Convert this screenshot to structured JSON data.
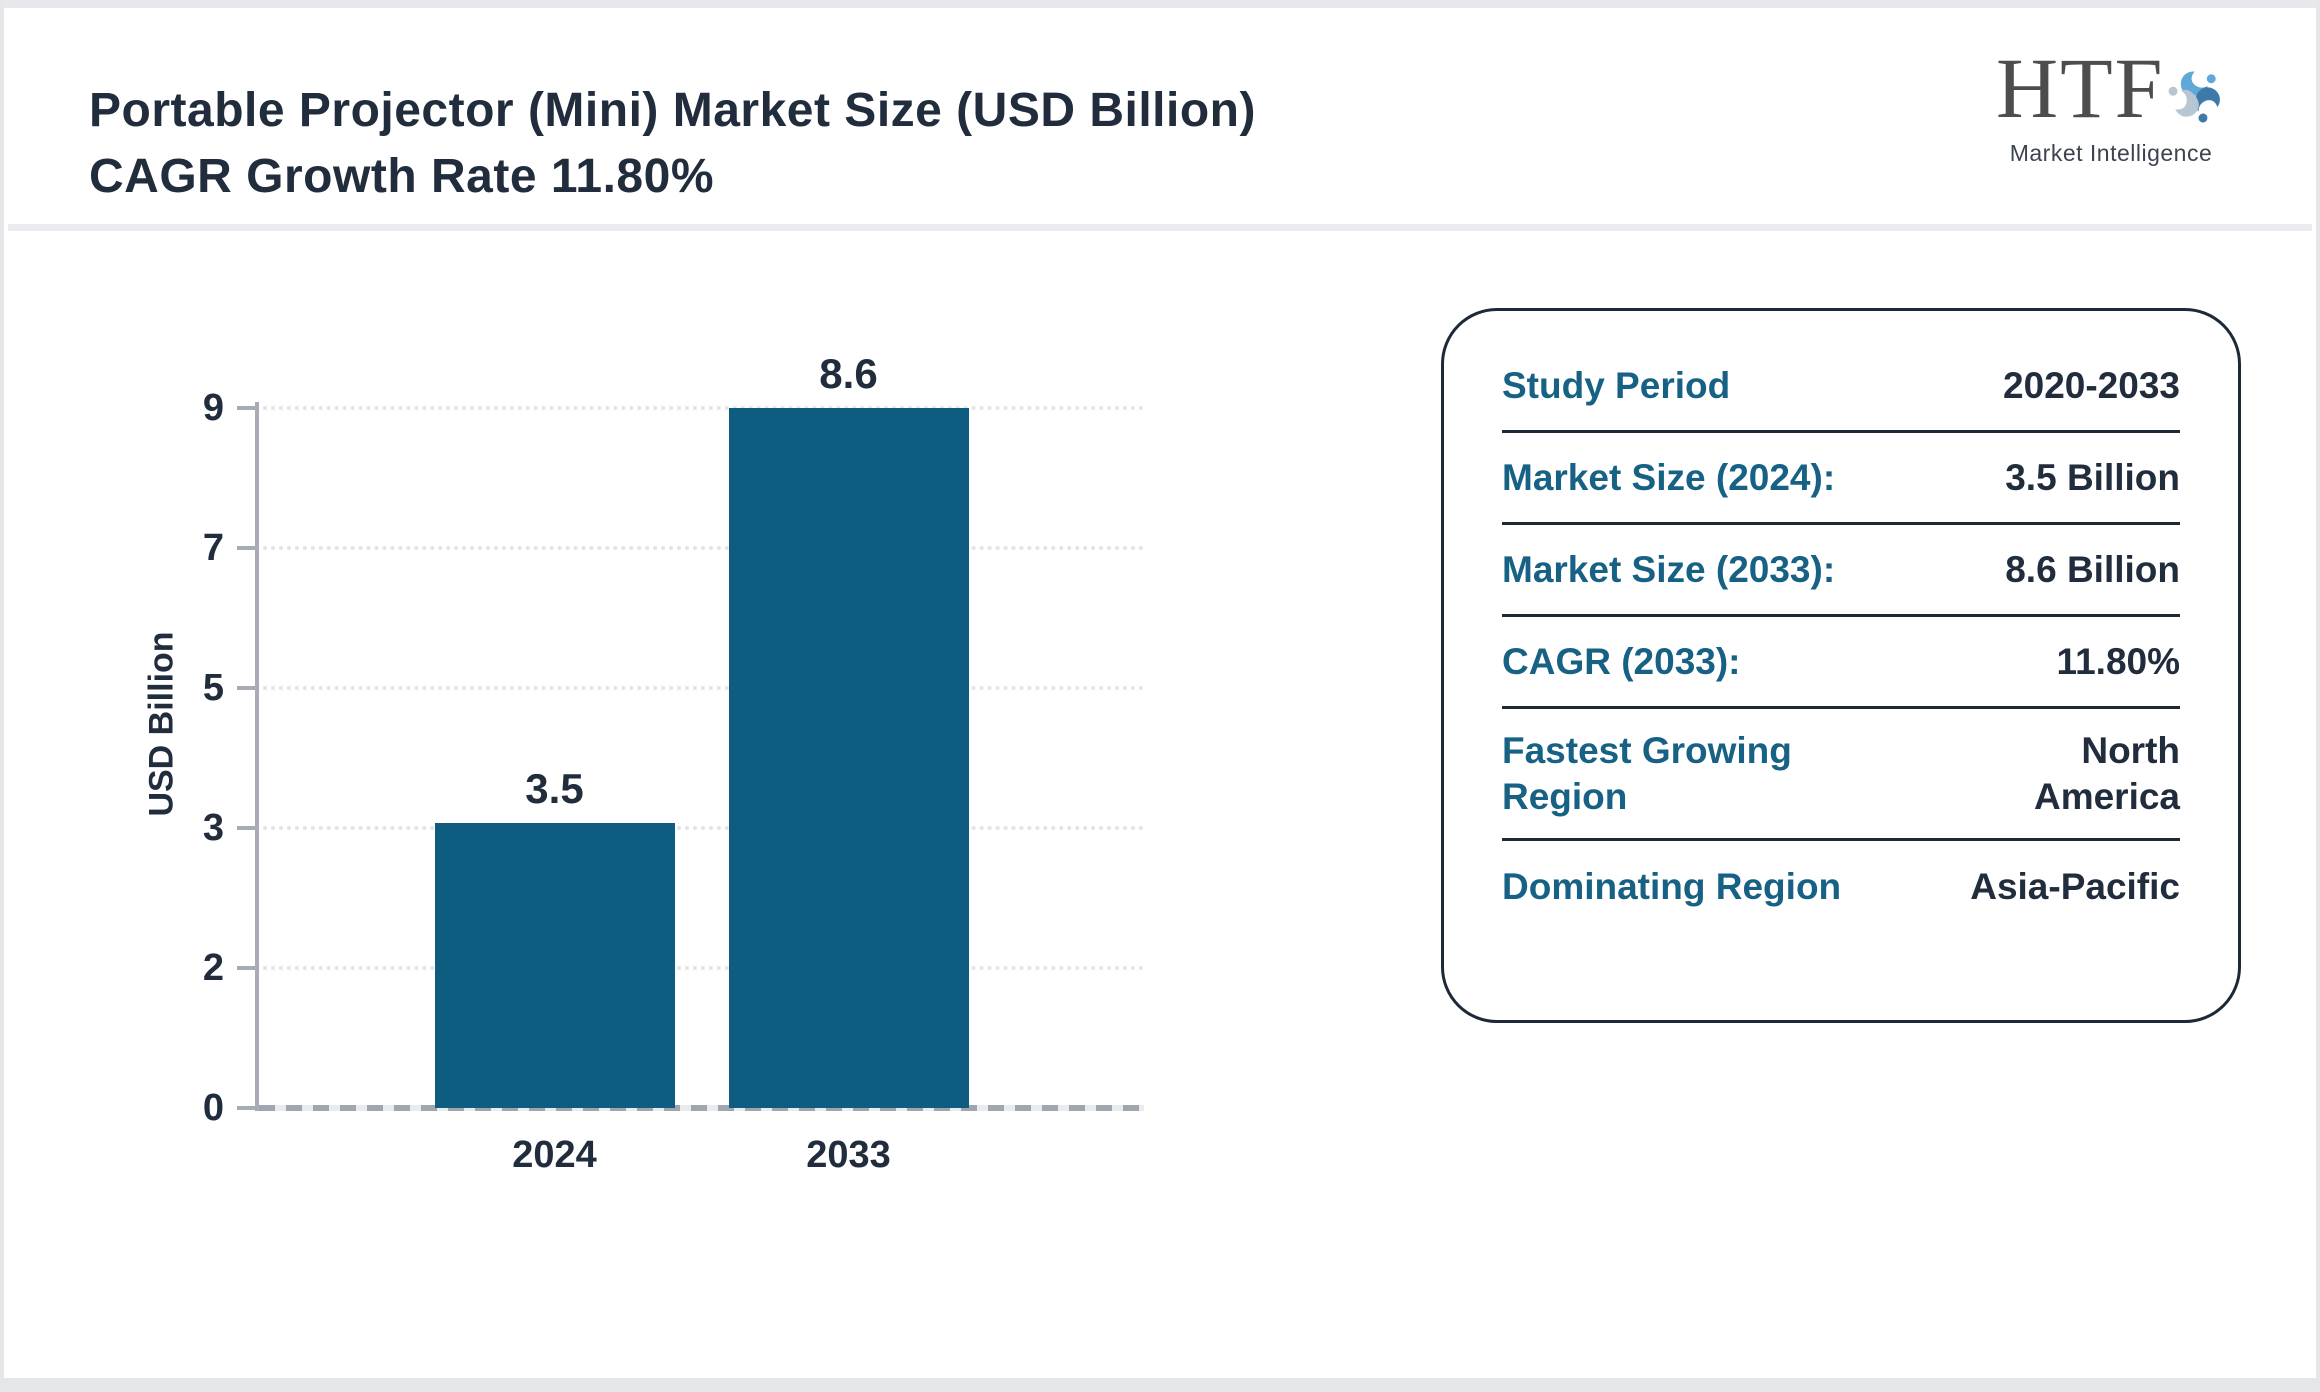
{
  "header": {
    "title": "Portable Projector (Mini) Market Size (USD Billion) CAGR Growth Rate 11.80%",
    "logo": {
      "acronym": "HTF",
      "subtitle": "Market Intelligence"
    }
  },
  "chart_data": {
    "type": "bar",
    "categories": [
      "2024",
      "2033"
    ],
    "values": [
      3.5,
      8.6
    ],
    "bar_labels": [
      "3.5",
      "8.6"
    ],
    "ylabel": "USD Billion",
    "xlabel": "",
    "ytick_labels": [
      "0",
      "2",
      "3",
      "5",
      "7",
      "9"
    ],
    "ylim": [
      0,
      8.6
    ],
    "grid": "horizontal-dotted",
    "legend": "none"
  },
  "card": {
    "rows": [
      {
        "id": "study-period",
        "label": "Study Period",
        "value": "2020-2033"
      },
      {
        "id": "market-size-2024",
        "label": "Market Size (2024):",
        "value": "3.5 Billion"
      },
      {
        "id": "market-size-2033",
        "label": "Market Size (2033):",
        "value": "8.6 Billion"
      },
      {
        "id": "cagr-2033",
        "label": "CAGR (2033):",
        "value": "11.80%"
      },
      {
        "id": "fastest-growing-region",
        "label": "Fastest Growing Region",
        "value": "North America"
      },
      {
        "id": "dominating-region",
        "label": "Dominating Region",
        "value": "Asia-Pacific"
      }
    ]
  },
  "colors": {
    "bar_fill": "#0e5d80",
    "ink_navy": "#212d3d",
    "accent_teal": "#176184",
    "axis_gray": "#a6abb4",
    "logo_blue_light": "#5ea9d8",
    "logo_blue_steel": "#3d7aa9",
    "logo_gray_blue": "#b7c6d3"
  }
}
